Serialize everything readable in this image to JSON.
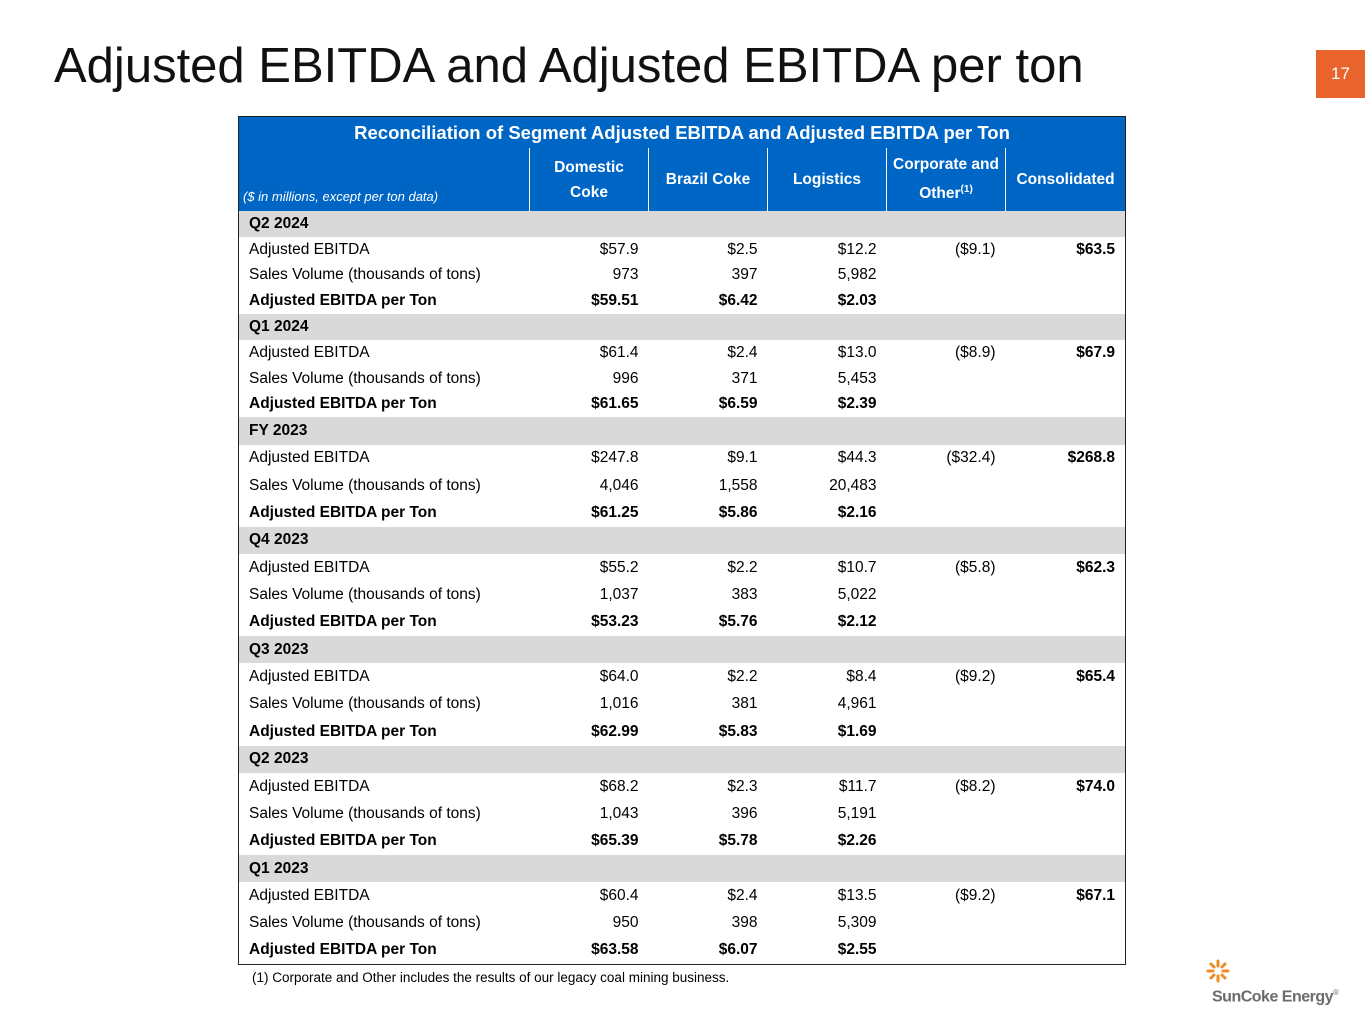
{
  "title": "Adjusted EBITDA and Adjusted EBITDA per ton",
  "page_number": "17",
  "table": {
    "caption": "Reconciliation of Segment Adjusted EBITDA and Adjusted EBITDA per Ton",
    "unit_note": "($ in millions, except per ton data)",
    "columns": [
      "Domestic Coke",
      "Brazil Coke",
      "Logistics",
      "Corporate and Other",
      "Consolidated"
    ],
    "corporate_marker": "(1)",
    "sections": [
      {
        "period": "Q2 2024",
        "rows": [
          {
            "label": "Adjusted EBITDA",
            "values": [
              "$57.9",
              "$2.5",
              "$12.2",
              "($9.1)",
              "$63.5"
            ]
          },
          {
            "label": "Sales Volume (thousands of tons)",
            "values": [
              "973",
              "397",
              "5,982"
            ]
          },
          {
            "label": "Adjusted EBITDA per Ton",
            "values": [
              "$59.51",
              "$6.42",
              "$2.03"
            ]
          }
        ]
      },
      {
        "period": "Q1 2024",
        "rows": [
          {
            "label": "Adjusted EBITDA",
            "values": [
              "$61.4",
              "$2.4",
              "$13.0",
              "($8.9)",
              "$67.9"
            ]
          },
          {
            "label": "Sales Volume (thousands of tons)",
            "values": [
              "996",
              "371",
              "5,453"
            ]
          },
          {
            "label": "Adjusted EBITDA per Ton",
            "values": [
              "$61.65",
              "$6.59",
              "$2.39"
            ]
          }
        ]
      },
      {
        "period": "FY 2023",
        "rows": [
          {
            "label": "Adjusted EBITDA",
            "values": [
              "$247.8",
              "$9.1",
              "$44.3",
              "($32.4)",
              "$268.8"
            ]
          },
          {
            "label": "Sales Volume (thousands of tons)",
            "values": [
              "4,046",
              "1,558",
              "20,483"
            ]
          },
          {
            "label": "Adjusted EBITDA per Ton",
            "values": [
              "$61.25",
              "$5.86",
              "$2.16"
            ]
          }
        ]
      },
      {
        "period": "Q4 2023",
        "rows": [
          {
            "label": "Adjusted EBITDA",
            "values": [
              "$55.2",
              "$2.2",
              "$10.7",
              "($5.8)",
              "$62.3"
            ]
          },
          {
            "label": "Sales Volume (thousands of tons)",
            "values": [
              "1,037",
              "383",
              "5,022"
            ]
          },
          {
            "label": "Adjusted EBITDA per Ton",
            "values": [
              "$53.23",
              "$5.76",
              "$2.12"
            ]
          }
        ]
      },
      {
        "period": "Q3 2023",
        "rows": [
          {
            "label": "Adjusted EBITDA",
            "values": [
              "$64.0",
              "$2.2",
              "$8.4",
              "($9.2)",
              "$65.4"
            ]
          },
          {
            "label": "Sales Volume (thousands of tons)",
            "values": [
              "1,016",
              "381",
              "4,961"
            ]
          },
          {
            "label": "Adjusted EBITDA per Ton",
            "values": [
              "$62.99",
              "$5.83",
              "$1.69"
            ]
          }
        ]
      },
      {
        "period": "Q2 2023",
        "rows": [
          {
            "label": "Adjusted EBITDA",
            "values": [
              "$68.2",
              "$2.3",
              "$11.7",
              "($8.2)",
              "$74.0"
            ]
          },
          {
            "label": "Sales Volume (thousands of tons)",
            "values": [
              "1,043",
              "396",
              "5,191"
            ]
          },
          {
            "label": "Adjusted EBITDA per Ton",
            "values": [
              "$65.39",
              "$5.78",
              "$2.26"
            ]
          }
        ]
      },
      {
        "period": "Q1 2023",
        "rows": [
          {
            "label": "Adjusted EBITDA",
            "values": [
              "$60.4",
              "$2.4",
              "$13.5",
              "($9.2)",
              "$67.1"
            ]
          },
          {
            "label": "Sales Volume (thousands of tons)",
            "values": [
              "950",
              "398",
              "5,309"
            ]
          },
          {
            "label": "Adjusted EBITDA per Ton",
            "values": [
              "$63.58",
              "$6.07",
              "$2.55"
            ]
          }
        ]
      }
    ],
    "footnote": "(1) Corporate and Other includes the results of our legacy coal mining business."
  },
  "logo": {
    "name": "SunCoke Energy",
    "mark": "®"
  }
}
